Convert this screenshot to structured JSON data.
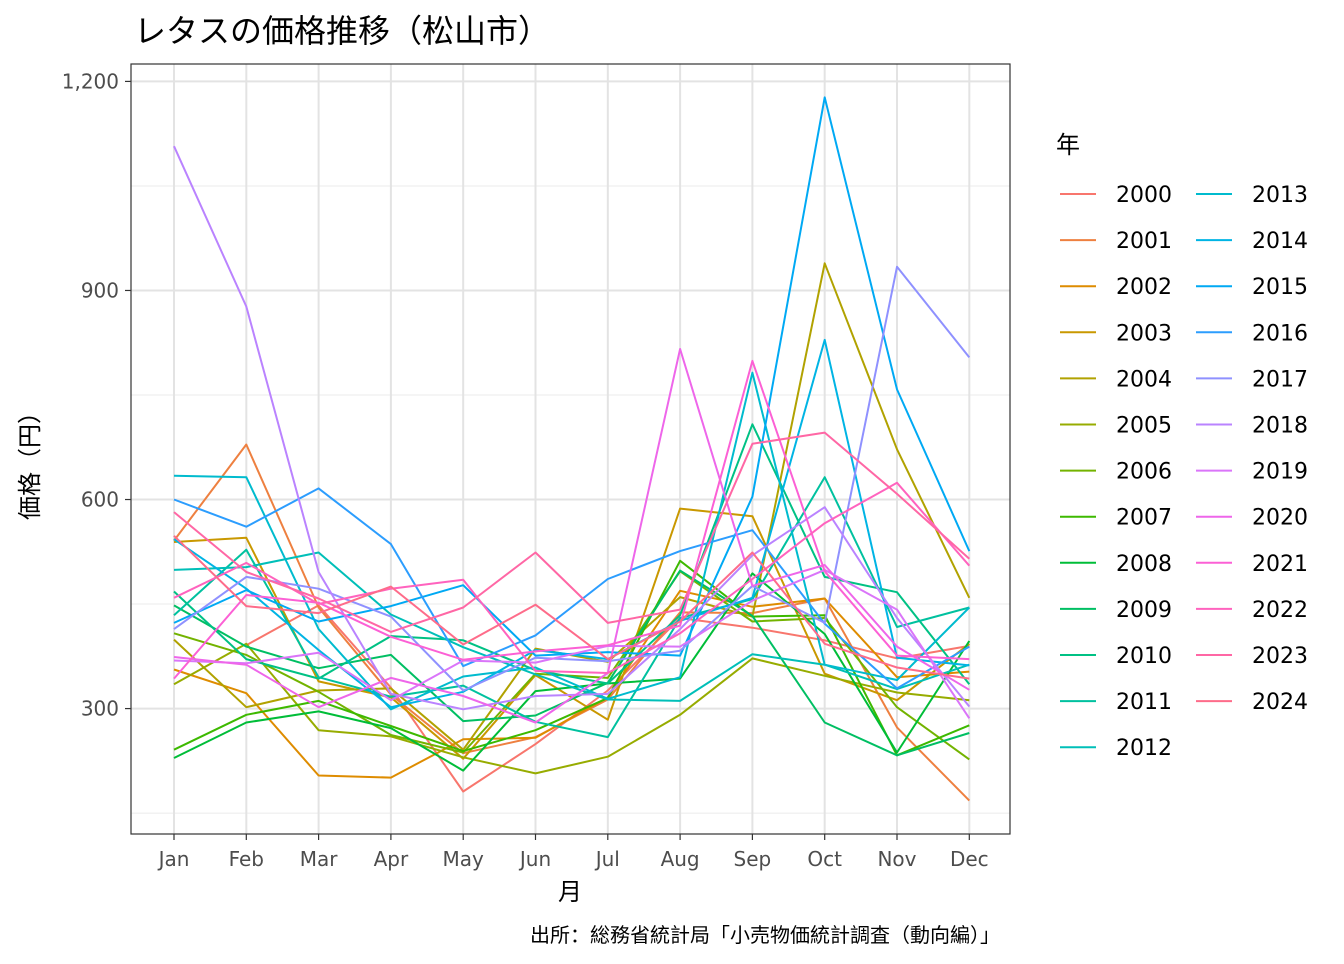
{
  "chart_data": {
    "type": "line",
    "title": "レタスの価格推移（松山市）",
    "xlabel": "月",
    "ylabel": "価格（円）",
    "caption": "出所：総務省統計局「小売物価統計調査（動向編）」",
    "legend_title": "年",
    "legend_position": "right",
    "grid": true,
    "categories": [
      "Jan",
      "Feb",
      "Mar",
      "Apr",
      "May",
      "Jun",
      "Jul",
      "Aug",
      "Sep",
      "Oct",
      "Nov",
      "Dec"
    ],
    "ylim": [
      120,
      1225
    ],
    "y_ticks": [
      300,
      600,
      900,
      1200
    ],
    "y_tick_labels": [
      "300",
      "600",
      "900",
      "1,200"
    ],
    "series": [
      {
        "name": "2000",
        "color": "#F8766D",
        "values": [
          null,
          391,
          448,
          330,
          181,
          249,
          326,
          430,
          416,
          398,
          372,
          390
        ]
      },
      {
        "name": "2001",
        "color": "#EE8040",
        "values": [
          541,
          679,
          445,
          320,
          236,
          259,
          313,
          438,
          437,
          458,
          273,
          168
        ]
      },
      {
        "name": "2002",
        "color": "#DE8C00",
        "values": [
          356,
          322,
          204,
          201,
          256,
          258,
          316,
          469,
          446,
          458,
          345,
          353
        ]
      },
      {
        "name": "2003",
        "color": "#C99800",
        "values": [
          539,
          545,
          339,
          316,
          228,
          348,
          284,
          587,
          576,
          350,
          312,
          393
        ]
      },
      {
        "name": "2004",
        "color": "#B1A200",
        "values": [
          399,
          302,
          326,
          329,
          241,
          386,
          367,
          460,
          432,
          939,
          672,
          459
        ]
      },
      {
        "name": "2005",
        "color": "#97AC00",
        "values": [
          335,
          393,
          269,
          260,
          230,
          207,
          231,
          291,
          372,
          347,
          323,
          312
        ]
      },
      {
        "name": "2006",
        "color": "#73B300",
        "values": [
          408,
          377,
          324,
          262,
          237,
          350,
          344,
          497,
          425,
          430,
          302,
          227
        ]
      },
      {
        "name": "2007",
        "color": "#3DB900",
        "values": [
          241,
          291,
          311,
          275,
          239,
          269,
          315,
          512,
          432,
          434,
          233,
          276
        ]
      },
      {
        "name": "2008",
        "color": "#00BD38",
        "values": [
          229,
          280,
          296,
          272,
          211,
          325,
          336,
          343,
          494,
          407,
          237,
          397
        ]
      },
      {
        "name": "2009",
        "color": "#00BF63",
        "values": [
          448,
          389,
          358,
          377,
          282,
          290,
          337,
          498,
          433,
          280,
          233,
          265
        ]
      },
      {
        "name": "2010",
        "color": "#00C184",
        "values": [
          468,
          371,
          343,
          404,
          398,
          355,
          336,
          434,
          708,
          489,
          467,
          335
        ]
      },
      {
        "name": "2011",
        "color": "#00C19F",
        "values": [
          434,
          528,
          345,
          317,
          333,
          281,
          259,
          430,
          457,
          632,
          417,
          445
        ]
      },
      {
        "name": "2012",
        "color": "#00BFB8",
        "values": [
          499,
          503,
          524,
          435,
          388,
          349,
          313,
          311,
          378,
          363,
          328,
          363
        ]
      },
      {
        "name": "2013",
        "color": "#00BBCE",
        "values": [
          634,
          632,
          414,
          299,
          346,
          359,
          314,
          345,
          782,
          363,
          341,
          445
        ]
      },
      {
        "name": "2014",
        "color": "#00B4E4",
        "values": [
          543,
          472,
          384,
          302,
          324,
          384,
          371,
          426,
          459,
          829,
          373,
          362
        ]
      },
      {
        "name": "2015",
        "color": "#00A9F4",
        "values": [
          423,
          470,
          425,
          447,
          477,
          376,
          381,
          376,
          604,
          1177,
          758,
          526
        ]
      },
      {
        "name": "2016",
        "color": "#2C9DFE",
        "values": [
          600,
          561,
          616,
          536,
          361,
          405,
          486,
          526,
          556,
          422,
          329,
          389
        ]
      },
      {
        "name": "2017",
        "color": "#8F91FF",
        "values": [
          414,
          489,
          472,
          432,
          326,
          373,
          368,
          383,
          476,
          423,
          934,
          804
        ]
      },
      {
        "name": "2018",
        "color": "#BA83FF",
        "values": [
          1107,
          877,
          496,
          321,
          299,
          318,
          321,
          414,
          520,
          589,
          430,
          303
        ]
      },
      {
        "name": "2019",
        "color": "#DA75F9",
        "values": [
          369,
          365,
          380,
          312,
          369,
          366,
          390,
          389,
          455,
          499,
          442,
          286
        ]
      },
      {
        "name": "2020",
        "color": "#EE66EA",
        "values": [
          374,
          363,
          302,
          344,
          318,
          280,
          351,
          816,
          476,
          506,
          389,
          327
        ]
      },
      {
        "name": "2021",
        "color": "#FC60D5",
        "values": [
          343,
          463,
          452,
          403,
          370,
          382,
          391,
          419,
          799,
          497,
          376,
          371
        ]
      },
      {
        "name": "2022",
        "color": "#FF63BE",
        "values": [
          459,
          509,
          450,
          472,
          485,
          354,
          351,
          408,
          486,
          566,
          624,
          505
        ]
      },
      {
        "name": "2023",
        "color": "#FF67A5",
        "values": [
          582,
          496,
          458,
          410,
          445,
          524,
          423,
          442,
          680,
          696,
          608,
          515
        ]
      },
      {
        "name": "2024",
        "color": "#FE6C8A",
        "values": [
          548,
          447,
          437,
          475,
          392,
          449,
          371,
          425,
          524,
          393,
          359,
          343
        ]
      }
    ]
  }
}
